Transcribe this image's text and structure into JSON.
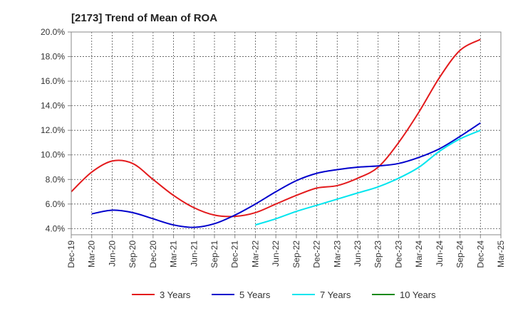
{
  "chart_data": {
    "type": "line",
    "title": "[2173]  Trend of Mean of ROA",
    "xlabel": "",
    "ylabel": "",
    "ylim": [
      3.5,
      20.0
    ],
    "yticks": [
      4.0,
      6.0,
      8.0,
      10.0,
      12.0,
      14.0,
      16.0,
      18.0,
      20.0
    ],
    "ytick_labels": [
      "4.0%",
      "6.0%",
      "8.0%",
      "10.0%",
      "12.0%",
      "14.0%",
      "16.0%",
      "18.0%",
      "20.0%"
    ],
    "x_labels": [
      "Dec-19",
      "Mar-20",
      "Jun-20",
      "Sep-20",
      "Dec-20",
      "Mar-21",
      "Jun-21",
      "Sep-21",
      "Dec-21",
      "Mar-22",
      "Jun-22",
      "Sep-22",
      "Dec-22",
      "Mar-23",
      "Jun-23",
      "Sep-23",
      "Dec-23",
      "Mar-24",
      "Jun-24",
      "Sep-24",
      "Dec-24",
      "Mar-25"
    ],
    "grid": true,
    "legend_position": "bottom",
    "series": [
      {
        "name": "3 Years",
        "color": "#e31a1c",
        "start_index": 0,
        "values": [
          7.0,
          8.6,
          9.5,
          9.3,
          8.0,
          6.7,
          5.7,
          5.1,
          5.0,
          5.3,
          6.0,
          6.7,
          7.3,
          7.5,
          8.1,
          9.0,
          11.0,
          13.5,
          16.3,
          18.5,
          19.4
        ]
      },
      {
        "name": "5 Years",
        "color": "#0000cc",
        "start_index": 1,
        "values": [
          5.2,
          5.5,
          5.3,
          4.8,
          4.3,
          4.1,
          4.4,
          5.1,
          6.0,
          7.0,
          7.9,
          8.5,
          8.8,
          9.0,
          9.1,
          9.3,
          9.8,
          10.5,
          11.5,
          12.6
        ]
      },
      {
        "name": "7 Years",
        "color": "#00e5ee",
        "start_index": 9,
        "values": [
          4.3,
          4.8,
          5.4,
          5.9,
          6.4,
          6.9,
          7.4,
          8.1,
          9.0,
          10.3,
          11.3,
          12.0
        ]
      },
      {
        "name": "10 Years",
        "color": "#1a8a1a",
        "start_index": 0,
        "values": []
      }
    ]
  }
}
